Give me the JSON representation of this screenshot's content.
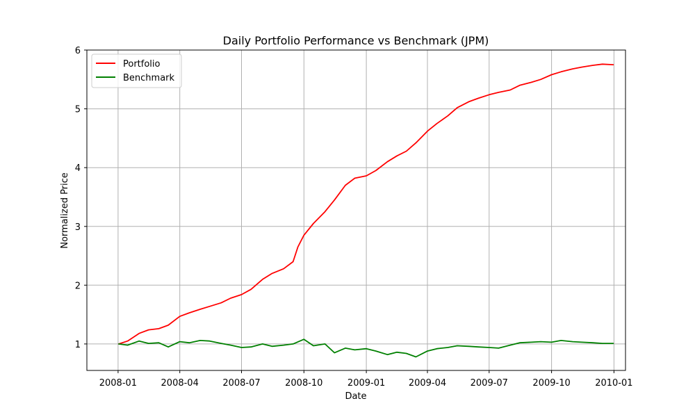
{
  "chart_data": {
    "type": "line",
    "title": "Daily Portfolio Performance vs Benchmark (JPM)",
    "xlabel": "Date",
    "ylabel": "Normalized Price",
    "grid": true,
    "legend_position": "top-left",
    "x_range": [
      "2007-11-16",
      "2010-01-18"
    ],
    "ylim": [
      0.55,
      6.0
    ],
    "x_ticks": [
      {
        "date": "2008-01-01",
        "label": "2008-01"
      },
      {
        "date": "2008-04-01",
        "label": "2008-04"
      },
      {
        "date": "2008-07-01",
        "label": "2008-07"
      },
      {
        "date": "2008-10-01",
        "label": "2008-10"
      },
      {
        "date": "2009-01-01",
        "label": "2009-01"
      },
      {
        "date": "2009-04-01",
        "label": "2009-04"
      },
      {
        "date": "2009-07-01",
        "label": "2009-07"
      },
      {
        "date": "2009-10-01",
        "label": "2009-10"
      },
      {
        "date": "2010-01-01",
        "label": "2010-01"
      }
    ],
    "y_ticks": [
      {
        "value": 1,
        "label": "1"
      },
      {
        "value": 2,
        "label": "2"
      },
      {
        "value": 3,
        "label": "3"
      },
      {
        "value": 4,
        "label": "4"
      },
      {
        "value": 5,
        "label": "5"
      },
      {
        "value": 6,
        "label": "6"
      }
    ],
    "series": [
      {
        "name": "Portfolio",
        "color": "#ff0000",
        "points": [
          [
            "2008-01-02",
            1.0
          ],
          [
            "2008-01-15",
            1.05
          ],
          [
            "2008-02-01",
            1.18
          ],
          [
            "2008-02-15",
            1.24
          ],
          [
            "2008-03-01",
            1.26
          ],
          [
            "2008-03-15",
            1.32
          ],
          [
            "2008-04-01",
            1.47
          ],
          [
            "2008-04-15",
            1.53
          ],
          [
            "2008-05-01",
            1.59
          ],
          [
            "2008-05-15",
            1.64
          ],
          [
            "2008-06-01",
            1.7
          ],
          [
            "2008-06-15",
            1.78
          ],
          [
            "2008-07-01",
            1.84
          ],
          [
            "2008-07-15",
            1.93
          ],
          [
            "2008-08-01",
            2.1
          ],
          [
            "2008-08-15",
            2.2
          ],
          [
            "2008-09-01",
            2.28
          ],
          [
            "2008-09-15",
            2.4
          ],
          [
            "2008-09-22",
            2.65
          ],
          [
            "2008-10-01",
            2.85
          ],
          [
            "2008-10-15",
            3.05
          ],
          [
            "2008-11-01",
            3.25
          ],
          [
            "2008-11-15",
            3.45
          ],
          [
            "2008-12-01",
            3.7
          ],
          [
            "2008-12-15",
            3.82
          ],
          [
            "2009-01-01",
            3.86
          ],
          [
            "2009-01-15",
            3.95
          ],
          [
            "2009-02-01",
            4.1
          ],
          [
            "2009-02-15",
            4.2
          ],
          [
            "2009-03-01",
            4.28
          ],
          [
            "2009-03-15",
            4.42
          ],
          [
            "2009-04-01",
            4.62
          ],
          [
            "2009-04-15",
            4.75
          ],
          [
            "2009-05-01",
            4.88
          ],
          [
            "2009-05-15",
            5.02
          ],
          [
            "2009-06-01",
            5.12
          ],
          [
            "2009-06-15",
            5.18
          ],
          [
            "2009-07-01",
            5.24
          ],
          [
            "2009-07-15",
            5.28
          ],
          [
            "2009-08-01",
            5.32
          ],
          [
            "2009-08-15",
            5.4
          ],
          [
            "2009-09-01",
            5.45
          ],
          [
            "2009-09-15",
            5.5
          ],
          [
            "2009-10-01",
            5.58
          ],
          [
            "2009-10-15",
            5.63
          ],
          [
            "2009-11-01",
            5.68
          ],
          [
            "2009-11-15",
            5.71
          ],
          [
            "2009-12-01",
            5.74
          ],
          [
            "2009-12-15",
            5.76
          ],
          [
            "2009-12-31",
            5.75
          ]
        ]
      },
      {
        "name": "Benchmark",
        "color": "#008000",
        "points": [
          [
            "2008-01-02",
            1.0
          ],
          [
            "2008-01-15",
            0.98
          ],
          [
            "2008-02-01",
            1.05
          ],
          [
            "2008-02-15",
            1.01
          ],
          [
            "2008-03-01",
            1.02
          ],
          [
            "2008-03-15",
            0.95
          ],
          [
            "2008-04-01",
            1.04
          ],
          [
            "2008-04-15",
            1.02
          ],
          [
            "2008-05-01",
            1.06
          ],
          [
            "2008-05-15",
            1.05
          ],
          [
            "2008-06-01",
            1.01
          ],
          [
            "2008-06-15",
            0.98
          ],
          [
            "2008-07-01",
            0.94
          ],
          [
            "2008-07-15",
            0.95
          ],
          [
            "2008-08-01",
            1.0
          ],
          [
            "2008-08-15",
            0.96
          ],
          [
            "2008-09-01",
            0.98
          ],
          [
            "2008-09-15",
            1.0
          ],
          [
            "2008-10-01",
            1.08
          ],
          [
            "2008-10-15",
            0.97
          ],
          [
            "2008-11-01",
            1.0
          ],
          [
            "2008-11-15",
            0.85
          ],
          [
            "2008-12-01",
            0.93
          ],
          [
            "2008-12-15",
            0.9
          ],
          [
            "2009-01-01",
            0.92
          ],
          [
            "2009-01-15",
            0.88
          ],
          [
            "2009-02-01",
            0.82
          ],
          [
            "2009-02-15",
            0.86
          ],
          [
            "2009-03-01",
            0.84
          ],
          [
            "2009-03-15",
            0.78
          ],
          [
            "2009-04-01",
            0.88
          ],
          [
            "2009-04-15",
            0.92
          ],
          [
            "2009-05-01",
            0.94
          ],
          [
            "2009-05-15",
            0.97
          ],
          [
            "2009-06-01",
            0.96
          ],
          [
            "2009-06-15",
            0.95
          ],
          [
            "2009-07-01",
            0.94
          ],
          [
            "2009-07-15",
            0.93
          ],
          [
            "2009-08-01",
            0.98
          ],
          [
            "2009-08-15",
            1.02
          ],
          [
            "2009-09-01",
            1.03
          ],
          [
            "2009-09-15",
            1.04
          ],
          [
            "2009-10-01",
            1.03
          ],
          [
            "2009-10-15",
            1.06
          ],
          [
            "2009-11-01",
            1.04
          ],
          [
            "2009-11-15",
            1.03
          ],
          [
            "2009-12-01",
            1.02
          ],
          [
            "2009-12-15",
            1.01
          ],
          [
            "2009-12-31",
            1.01
          ]
        ]
      }
    ]
  }
}
